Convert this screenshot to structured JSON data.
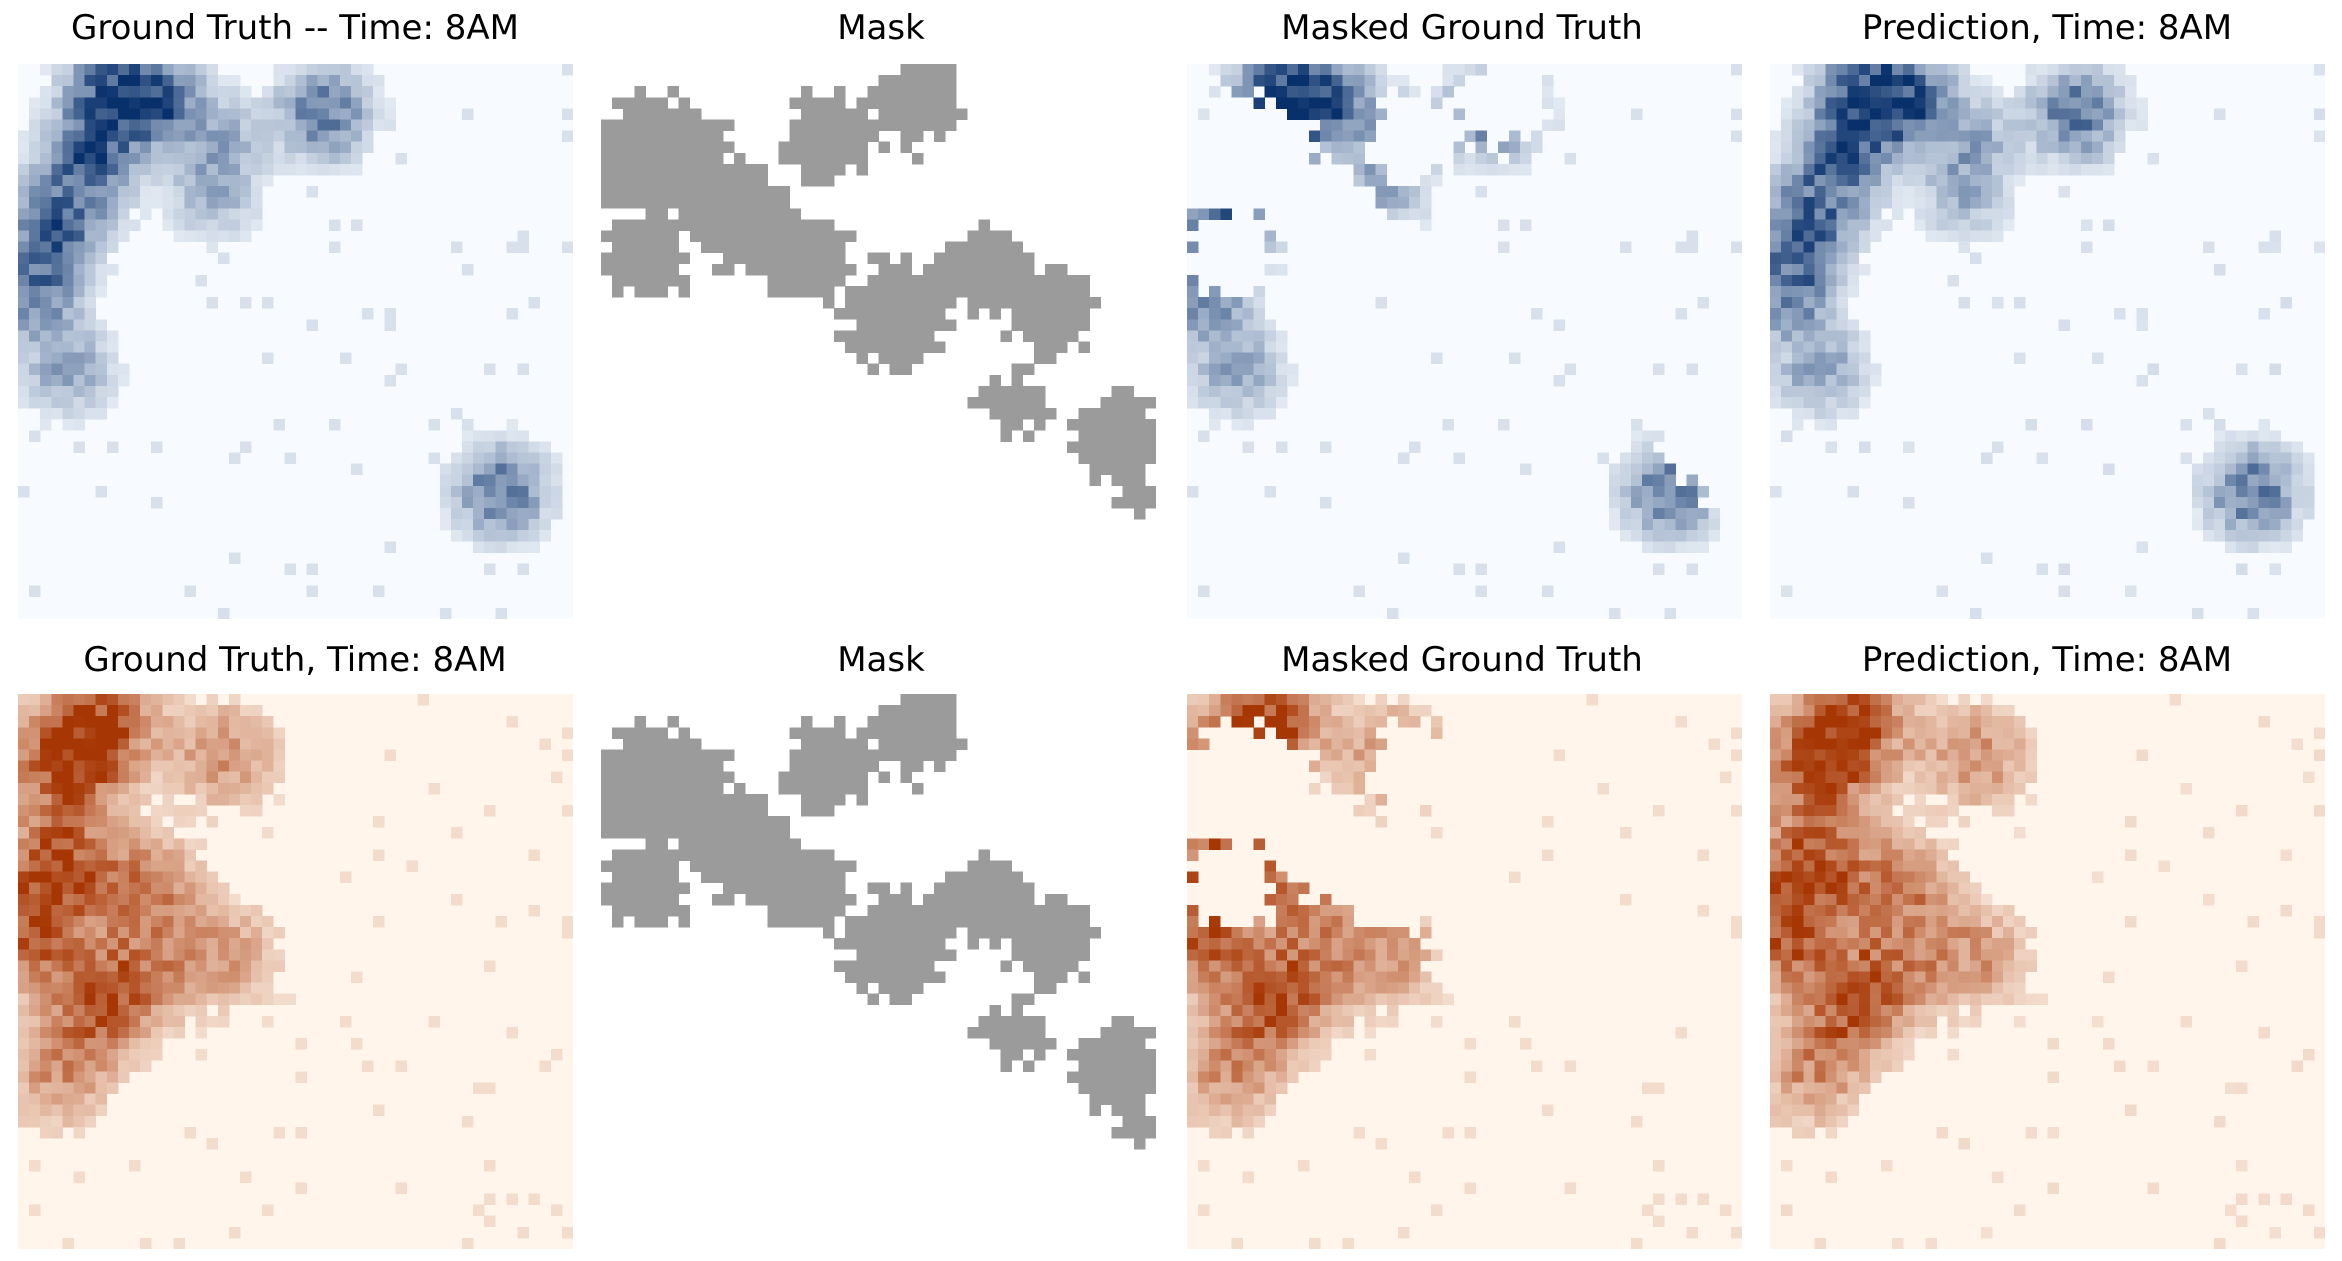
{
  "figure": {
    "rows": [
      {
        "name": "taxi-row",
        "panels": [
          {
            "title": "Ground Truth -- Time: 8AM",
            "cmap": "blues",
            "source": "truth1"
          },
          {
            "title": "Mask",
            "cmap": "mask",
            "source": "mask"
          },
          {
            "title": "Masked Ground Truth",
            "cmap": "blues",
            "source": "masked1"
          },
          {
            "title": "Prediction, Time: 8AM",
            "cmap": "blues",
            "source": "pred1"
          }
        ]
      },
      {
        "name": "bike-row",
        "panels": [
          {
            "title": "Ground Truth, Time: 8AM",
            "cmap": "oranges",
            "source": "truth2"
          },
          {
            "title": "Mask",
            "cmap": "mask",
            "source": "mask"
          },
          {
            "title": "Masked Ground Truth",
            "cmap": "oranges",
            "source": "masked2"
          },
          {
            "title": "Prediction, Time: 8AM",
            "cmap": "oranges",
            "source": "pred2"
          }
        ]
      }
    ]
  },
  "colors": {
    "blues_low": "#f7fbff",
    "blues_high": "#08306b",
    "oranges_low": "#fff5eb",
    "oranges_high": "#a63603",
    "mask_gray": "#9b9b9b",
    "mask_background": "#ffffff"
  },
  "chart_data": [
    {
      "type": "heatmap",
      "grid": [
        50,
        50
      ],
      "title": "Ground Truth -- Time: 8AM",
      "colormap": "Blues",
      "hotspots": [
        {
          "x": 8,
          "y": 2,
          "value": 0.8
        },
        {
          "x": 12,
          "y": 3,
          "value": 0.7
        },
        {
          "x": 6,
          "y": 8,
          "value": 0.85
        },
        {
          "x": 3,
          "y": 14,
          "value": 0.75
        },
        {
          "x": 1,
          "y": 20,
          "value": 0.6
        },
        {
          "x": 4,
          "y": 27,
          "value": 0.35
        },
        {
          "x": 18,
          "y": 6,
          "value": 0.25
        },
        {
          "x": 17,
          "y": 11,
          "value": 0.3
        },
        {
          "x": 27,
          "y": 4,
          "value": 0.6
        },
        {
          "x": 43,
          "y": 38,
          "value": 0.6
        }
      ]
    },
    {
      "type": "heatmap",
      "grid": [
        50,
        50
      ],
      "title": "Mask",
      "values": "binary",
      "mask_blobs": [
        {
          "x": 5,
          "y": 8,
          "r": 6
        },
        {
          "x": 3,
          "y": 17,
          "r": 4
        },
        {
          "x": 12,
          "y": 13,
          "r": 5
        },
        {
          "x": 20,
          "y": 6,
          "r": 4
        },
        {
          "x": 28,
          "y": 3,
          "r": 4
        },
        {
          "x": 18,
          "y": 17,
          "r": 4
        },
        {
          "x": 26,
          "y": 22,
          "r": 5
        },
        {
          "x": 34,
          "y": 18,
          "r": 4
        },
        {
          "x": 40,
          "y": 22,
          "r": 4
        },
        {
          "x": 37,
          "y": 30,
          "r": 3
        },
        {
          "x": 46,
          "y": 33,
          "r": 4
        },
        {
          "x": 48,
          "y": 38,
          "r": 2
        }
      ]
    },
    {
      "type": "heatmap",
      "grid": [
        50,
        50
      ],
      "title": "Masked Ground Truth",
      "colormap": "Blues",
      "derived_from": "Ground Truth -- Time: 8AM with Mask cells removed"
    },
    {
      "type": "heatmap",
      "grid": [
        50,
        50
      ],
      "title": "Prediction, Time: 8AM",
      "colormap": "Blues",
      "derived_from": "approximates Ground Truth -- Time: 8AM"
    },
    {
      "type": "heatmap",
      "grid": [
        50,
        50
      ],
      "title": "Ground Truth, Time: 8AM",
      "colormap": "Oranges",
      "hotspots": [
        {
          "x": 4,
          "y": 6,
          "value": 0.85
        },
        {
          "x": 7,
          "y": 2,
          "value": 0.8
        },
        {
          "x": 3,
          "y": 15,
          "value": 0.9
        },
        {
          "x": 1,
          "y": 21,
          "value": 0.7
        },
        {
          "x": 18,
          "y": 5,
          "value": 0.45
        },
        {
          "x": 11,
          "y": 17,
          "value": 0.55
        },
        {
          "x": 6,
          "y": 28,
          "value": 0.6
        },
        {
          "x": 10,
          "y": 25,
          "value": 0.55
        },
        {
          "x": 18,
          "y": 23,
          "value": 0.4
        },
        {
          "x": 3,
          "y": 34,
          "value": 0.4
        }
      ]
    },
    {
      "type": "heatmap",
      "grid": [
        50,
        50
      ],
      "title": "Mask",
      "values": "binary",
      "same_as": "row 1 Mask"
    },
    {
      "type": "heatmap",
      "grid": [
        50,
        50
      ],
      "title": "Masked Ground Truth",
      "colormap": "Oranges",
      "derived_from": "Ground Truth, Time: 8AM with Mask cells removed"
    },
    {
      "type": "heatmap",
      "grid": [
        50,
        50
      ],
      "title": "Prediction, Time: 8AM",
      "colormap": "Oranges",
      "derived_from": "approximates Ground Truth, Time: 8AM"
    }
  ]
}
